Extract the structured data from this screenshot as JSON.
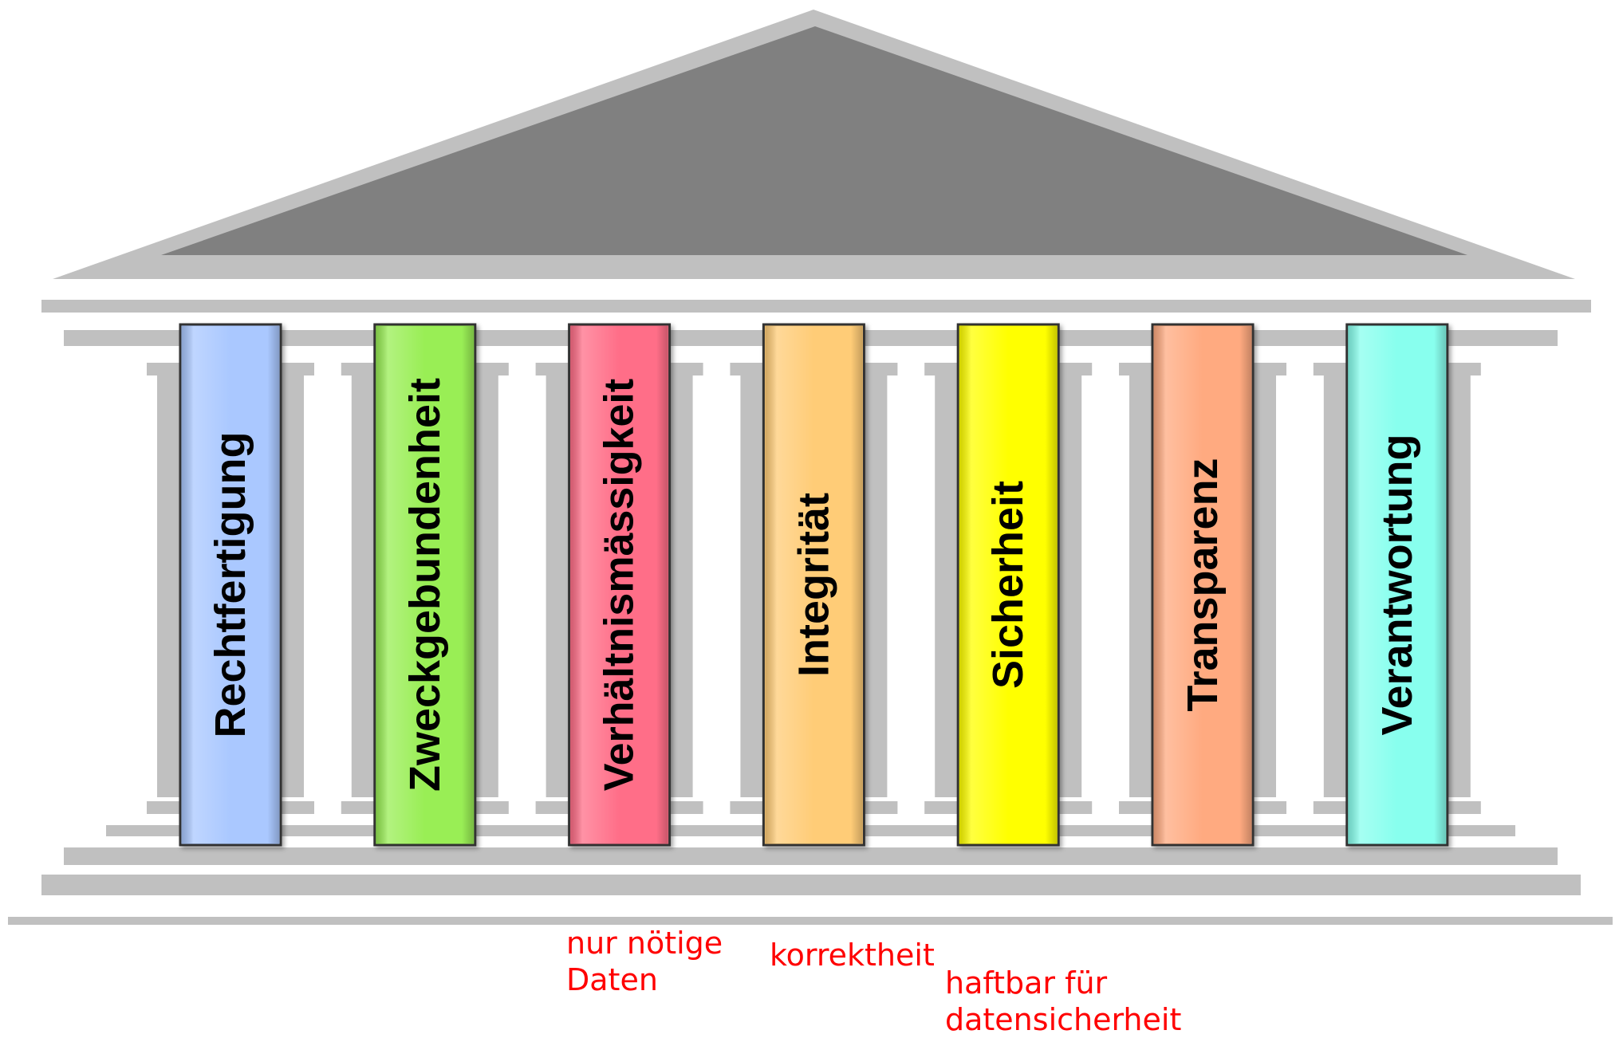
{
  "pillars": [
    {
      "label": "Rechtfertigung",
      "color": "#aac8ff"
    },
    {
      "label": "Zweckgebundenheit",
      "color": "#99ee55"
    },
    {
      "label": "Verhältnismässigkeit",
      "color": "#ff6e88"
    },
    {
      "label": "Integrität",
      "color": "#ffcc77"
    },
    {
      "label": "Sicherheit",
      "color": "#ffff00"
    },
    {
      "label": "Transparenz",
      "color": "#ffaa80"
    },
    {
      "label": "Verantwortung",
      "color": "#88ffee"
    }
  ],
  "annotations": [
    {
      "text": "nur nötige\nDaten"
    },
    {
      "text": "korrektheit"
    },
    {
      "text": "haftbar für\ndatensicherheit"
    }
  ],
  "colors": {
    "roof_outer": "#c0c0c0",
    "roof_inner": "#808080",
    "beam": "#c0c0c0",
    "pillar_border": "#333333",
    "annotation": "#ff0000"
  }
}
